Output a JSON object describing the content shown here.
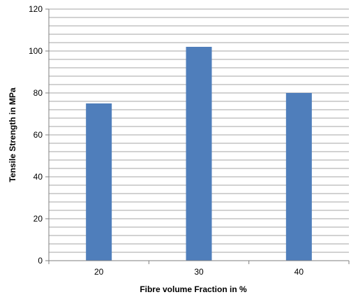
{
  "chart_data": {
    "type": "bar",
    "title": "",
    "xlabel": "Fibre volume Fraction  in %",
    "ylabel": "Tensile Strength in MPa",
    "categories": [
      "20",
      "30",
      "40"
    ],
    "values": [
      75,
      102,
      80
    ],
    "ylim": [
      0,
      120
    ],
    "y_major_ticks": [
      0,
      20,
      40,
      60,
      80,
      100,
      120
    ],
    "y_minor_step": 4,
    "grid": true,
    "legend": "none",
    "bar_color": "#4F7EBB",
    "grid_color": "#A6A6A6",
    "axis_color": "#7F7F7F"
  }
}
